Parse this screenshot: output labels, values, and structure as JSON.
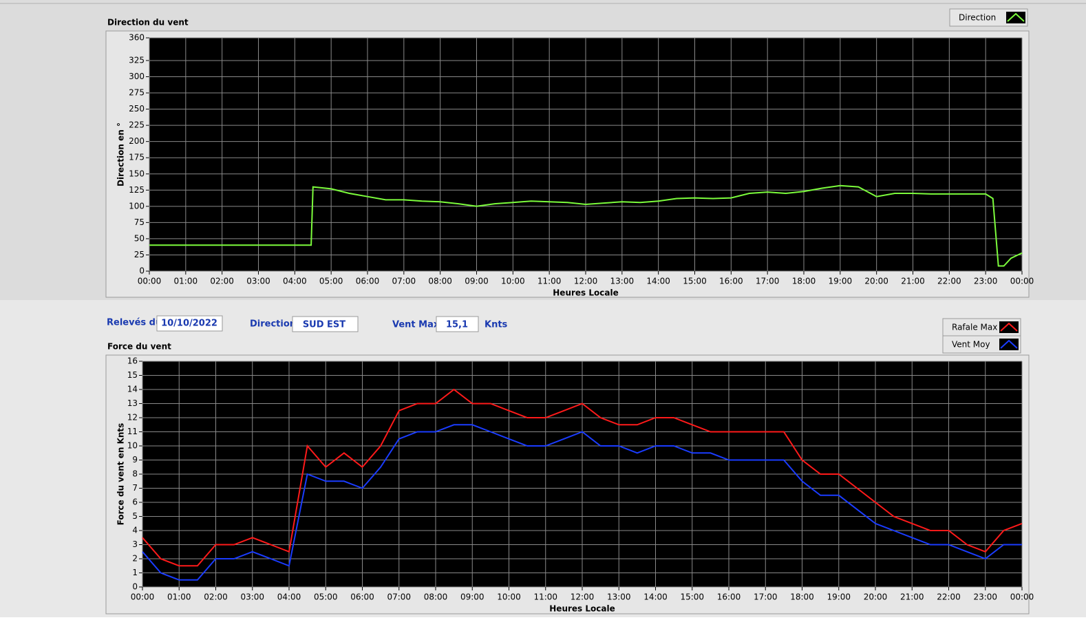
{
  "chart_data": [
    {
      "type": "line",
      "title": "Direction du vent",
      "y_label": "Direction en °",
      "x_label": "Heures Locale",
      "xlim": [
        0,
        24
      ],
      "ylim": [
        0,
        360
      ],
      "grid": true,
      "legend": "top-right",
      "yticks": [
        0,
        25,
        50,
        75,
        100,
        125,
        150,
        175,
        200,
        225,
        250,
        275,
        300,
        325,
        360
      ],
      "xticks": [
        {
          "value": 0,
          "label": "00:00"
        },
        {
          "value": 1,
          "label": "01:00"
        },
        {
          "value": 2,
          "label": "02:00"
        },
        {
          "value": 3,
          "label": "03:00"
        },
        {
          "value": 4,
          "label": "04:00"
        },
        {
          "value": 5,
          "label": "05:00"
        },
        {
          "value": 6,
          "label": "06:00"
        },
        {
          "value": 7,
          "label": "07:00"
        },
        {
          "value": 8,
          "label": "08:00"
        },
        {
          "value": 9,
          "label": "09:00"
        },
        {
          "value": 10,
          "label": "10:00"
        },
        {
          "value": 11,
          "label": "11:00"
        },
        {
          "value": 12,
          "label": "12:00"
        },
        {
          "value": 13,
          "label": "13:00"
        },
        {
          "value": 14,
          "label": "14:00"
        },
        {
          "value": 15,
          "label": "15:00"
        },
        {
          "value": 16,
          "label": "16:00"
        },
        {
          "value": 17,
          "label": "17:00"
        },
        {
          "value": 18,
          "label": "18:00"
        },
        {
          "value": 19,
          "label": "19:00"
        },
        {
          "value": 20,
          "label": "20:00"
        },
        {
          "value": 21,
          "label": "21:00"
        },
        {
          "value": 22,
          "label": "22:00"
        },
        {
          "value": 23,
          "label": "23:00"
        },
        {
          "value": 24,
          "label": "00:00"
        }
      ],
      "x": [
        0,
        4.45,
        4.5,
        5,
        5.5,
        6,
        6.5,
        7,
        7.5,
        8,
        8.5,
        9,
        9.5,
        10,
        10.5,
        11,
        11.5,
        12,
        12.5,
        13,
        13.5,
        14,
        14.5,
        15,
        15.5,
        16,
        16.5,
        17,
        17.5,
        18,
        18.5,
        19,
        19.5,
        20,
        20.5,
        21,
        21.5,
        22,
        22.5,
        23,
        23.2,
        23.35,
        23.5,
        23.7,
        24
      ],
      "series": [
        {
          "name": "Direction",
          "color": "#7cfc3c",
          "values": [
            40,
            40,
            130,
            127,
            120,
            115,
            110,
            110,
            108,
            107,
            104,
            100,
            104,
            106,
            108,
            107,
            106,
            103,
            105,
            107,
            106,
            108,
            112,
            113,
            112,
            113,
            120,
            122,
            120,
            123,
            128,
            132,
            130,
            115,
            120,
            120,
            119,
            119,
            119,
            119,
            112,
            8,
            8,
            20,
            28
          ]
        }
      ]
    },
    {
      "type": "line",
      "title": "Force du vent",
      "y_label": "Force du vent en Knts",
      "x_label": "Heures Locale",
      "xlim": [
        0,
        24
      ],
      "ylim": [
        0,
        16
      ],
      "grid": true,
      "legend": "top-right",
      "yticks": [
        0,
        1,
        2,
        3,
        4,
        5,
        6,
        7,
        8,
        9,
        10,
        11,
        12,
        13,
        14,
        15,
        16
      ],
      "xticks": [
        {
          "value": 0,
          "label": "00:00"
        },
        {
          "value": 1,
          "label": "01:00"
        },
        {
          "value": 2,
          "label": "02:00"
        },
        {
          "value": 3,
          "label": "03:00"
        },
        {
          "value": 4,
          "label": "04:00"
        },
        {
          "value": 5,
          "label": "05:00"
        },
        {
          "value": 6,
          "label": "06:00"
        },
        {
          "value": 7,
          "label": "07:00"
        },
        {
          "value": 8,
          "label": "08:00"
        },
        {
          "value": 9,
          "label": "09:00"
        },
        {
          "value": 10,
          "label": "10:00"
        },
        {
          "value": 11,
          "label": "11:00"
        },
        {
          "value": 12,
          "label": "12:00"
        },
        {
          "value": 13,
          "label": "13:00"
        },
        {
          "value": 14,
          "label": "14:00"
        },
        {
          "value": 15,
          "label": "15:00"
        },
        {
          "value": 16,
          "label": "16:00"
        },
        {
          "value": 17,
          "label": "17:00"
        },
        {
          "value": 18,
          "label": "18:00"
        },
        {
          "value": 19,
          "label": "19:00"
        },
        {
          "value": 20,
          "label": "20:00"
        },
        {
          "value": 21,
          "label": "21:00"
        },
        {
          "value": 22,
          "label": "22:00"
        },
        {
          "value": 23,
          "label": "23:00"
        },
        {
          "value": 24,
          "label": "00:00"
        }
      ],
      "x": [
        0,
        0.5,
        1,
        1.5,
        2,
        2.5,
        3,
        3.5,
        4,
        4.5,
        5,
        5.5,
        6,
        6.5,
        7,
        7.5,
        8,
        8.5,
        9,
        9.5,
        10,
        10.5,
        11,
        11.5,
        12,
        12.5,
        13,
        13.5,
        14,
        14.5,
        15,
        15.5,
        16,
        16.5,
        17,
        17.5,
        18,
        18.5,
        19,
        19.5,
        20,
        20.5,
        21,
        21.5,
        22,
        22.5,
        23,
        23.5,
        24
      ],
      "series": [
        {
          "name": "Rafale Max",
          "color": "#ff1a1a",
          "values": [
            3.5,
            2,
            1.5,
            1.5,
            3,
            3,
            3.5,
            3,
            2.5,
            10,
            8.5,
            9.5,
            8.5,
            10,
            12.5,
            13,
            13,
            14,
            13,
            13,
            12.5,
            12,
            12,
            12.5,
            13,
            12,
            11.5,
            11.5,
            12,
            12,
            11.5,
            11,
            11,
            11,
            11,
            11,
            9,
            8,
            8,
            7,
            6,
            5,
            4.5,
            4,
            4,
            3,
            2.5,
            4,
            4.5
          ]
        },
        {
          "name": "Vent Moy",
          "color": "#1a3cff",
          "values": [
            2.5,
            1,
            0.5,
            0.5,
            2,
            2,
            2.5,
            2,
            1.5,
            8,
            7.5,
            7.5,
            7,
            8.5,
            10.5,
            11,
            11,
            11.5,
            11.5,
            11,
            10.5,
            10,
            10,
            10.5,
            11,
            10,
            10,
            9.5,
            10,
            10,
            9.5,
            9.5,
            9,
            9,
            9,
            9,
            7.5,
            6.5,
            6.5,
            5.5,
            4.5,
            4,
            3.5,
            3,
            3,
            2.5,
            2,
            3,
            3
          ]
        }
      ]
    }
  ],
  "form": {
    "date_label": "Relevés du",
    "date": "10/10/2022",
    "direction_label": "Direction",
    "direction": "SUD EST",
    "max_label": "Vent Max",
    "max": "15,1",
    "unit": "Knts"
  }
}
